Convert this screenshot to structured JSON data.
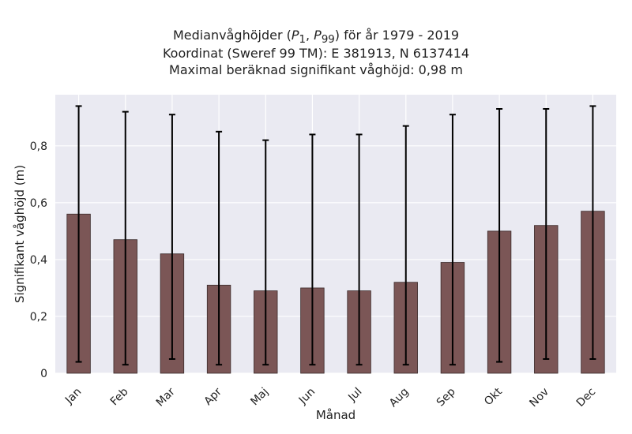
{
  "chart_data": {
    "type": "bar",
    "title_lines": [
      "Medianvåghöjder (P1, P99) för år 1979 - 2019",
      "Koordinat (Sweref 99 TM): E 381913, N 6137414",
      "Maximal beräknad signifikant våghöjd: 0,98 m"
    ],
    "title_math": {
      "prefix": "Medianvåghöjder (",
      "p": "P",
      "sub1": "1",
      "sep": ", ",
      "sub2": "99",
      "suffix": ") för år 1979 - 2019"
    },
    "xlabel": "Månad",
    "ylabel": "Signifikant våghöjd (m)",
    "categories": [
      "Jan",
      "Feb",
      "Mar",
      "Apr",
      "Maj",
      "Jun",
      "Jul",
      "Aug",
      "Sep",
      "Okt",
      "Nov",
      "Dec"
    ],
    "values": [
      0.56,
      0.47,
      0.42,
      0.31,
      0.29,
      0.3,
      0.29,
      0.32,
      0.39,
      0.5,
      0.52,
      0.57
    ],
    "p1": [
      0.04,
      0.03,
      0.05,
      0.03,
      0.03,
      0.03,
      0.03,
      0.03,
      0.03,
      0.04,
      0.05,
      0.05
    ],
    "p99": [
      0.94,
      0.92,
      0.91,
      0.85,
      0.82,
      0.84,
      0.84,
      0.87,
      0.91,
      0.93,
      0.93,
      0.94
    ],
    "ylim": [
      0,
      0.98
    ],
    "yticks": [
      0,
      0.2,
      0.4,
      0.6,
      0.8
    ],
    "ytick_labels": [
      "0",
      "0,2",
      "0,4",
      "0,6",
      "0,8"
    ],
    "grid": true,
    "colors": {
      "bar": "#7b5656",
      "bar_edge": "#3a2a2a",
      "error": "#000000",
      "plot_bg": "#eaeaf2",
      "grid": "#ffffff"
    }
  }
}
